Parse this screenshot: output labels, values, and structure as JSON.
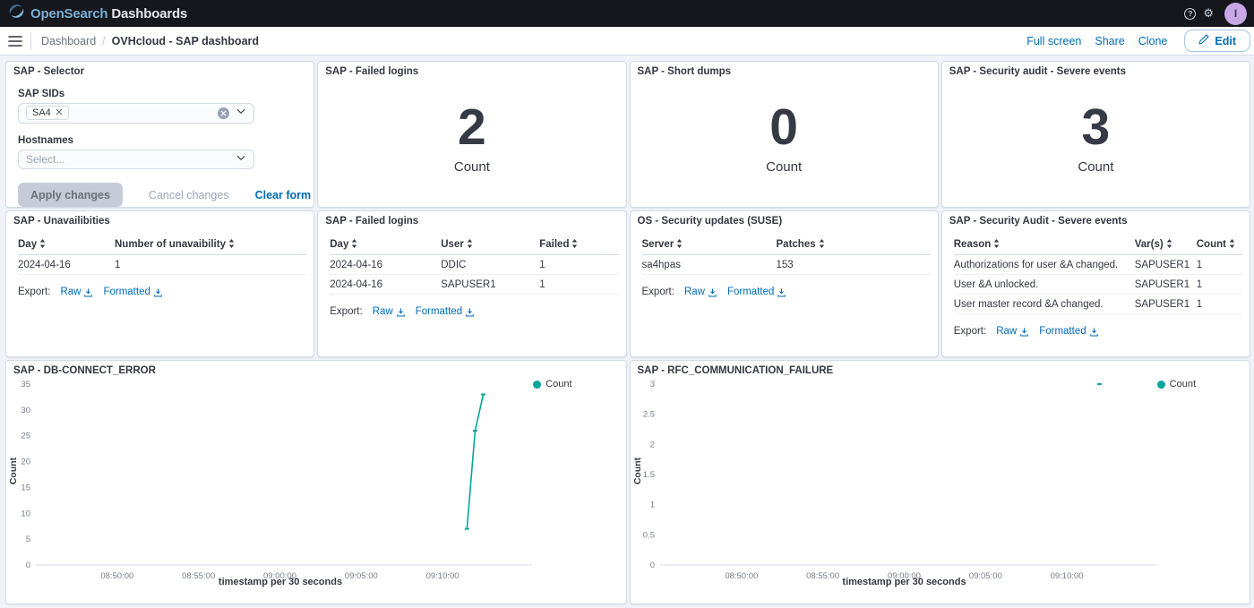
{
  "colors": {
    "accent_blue": "#006BB4",
    "teal": "#00A69B",
    "text_dark": "#343741",
    "border": "#D3DAE6",
    "header_bg": "#15171C",
    "avatar_bg": "#C9A7E6"
  },
  "header": {
    "brand": "OpenSearch",
    "product": "Dashboards",
    "icons": [
      "help-icon",
      "gear-icon"
    ],
    "avatar_letter": "I"
  },
  "nav": {
    "breadcrumb_root": "Dashboard",
    "breadcrumb_separator": "/",
    "breadcrumb_current": "OVHcloud - SAP dashboard",
    "full_screen": "Full screen",
    "share": "Share",
    "clone": "Clone",
    "edit": "Edit"
  },
  "selector": {
    "title": "SAP - Selector",
    "sids_label": "SAP SIDs",
    "sid_tag": "SA4",
    "hostnames_label": "Hostnames",
    "hostnames_placeholder": "Select...",
    "apply": "Apply changes",
    "cancel": "Cancel changes",
    "clear": "Clear form"
  },
  "metrics": [
    {
      "title": "SAP - Failed logins",
      "value": "2",
      "label": "Count"
    },
    {
      "title": "SAP - Short dumps",
      "value": "0",
      "label": "Count"
    },
    {
      "title": "SAP - Security audit - Severe events",
      "value": "3",
      "label": "Count"
    }
  ],
  "tables": [
    {
      "title": "SAP - Unavailibities",
      "columns": [
        "Day",
        "Number of unavaibility"
      ],
      "rows": [
        [
          "2024-04-16",
          "1"
        ]
      ],
      "export_label": "Export:",
      "raw": "Raw",
      "formatted": "Formatted"
    },
    {
      "title": "SAP - Failed logins",
      "columns": [
        "Day",
        "User",
        "Failed"
      ],
      "rows": [
        [
          "2024-04-16",
          "DDIC",
          "1"
        ],
        [
          "2024-04-16",
          "SAPUSER1",
          "1"
        ]
      ],
      "export_label": "Export:",
      "raw": "Raw",
      "formatted": "Formatted"
    },
    {
      "title": "OS - Security updates (SUSE)",
      "columns": [
        "Server",
        "Patches"
      ],
      "rows": [
        [
          "sa4hpas",
          "153"
        ]
      ],
      "export_label": "Export:",
      "raw": "Raw",
      "formatted": "Formatted"
    },
    {
      "title": "SAP - Security Audit - Severe events",
      "columns": [
        "Reason",
        "Var(s)",
        "Count"
      ],
      "rows": [
        [
          "Authorizations for user &A changed.",
          "SAPUSER1",
          "1"
        ],
        [
          "User &A unlocked.",
          "SAPUSER1",
          "1"
        ],
        [
          "User master record &A changed.",
          "SAPUSER1",
          "1"
        ]
      ],
      "export_label": "Export:",
      "raw": "Raw",
      "formatted": "Formatted"
    }
  ],
  "chart_data": [
    {
      "type": "line",
      "title": "SAP - DB-CONNECT_ERROR",
      "xlabel": "timestamp per 30 seconds",
      "ylabel": "Count",
      "legend": "Count",
      "color": "#00A69B",
      "x_domain": [
        "08:45:00",
        "09:15:30"
      ],
      "x_ticks": [
        "08:50:00",
        "08:55:00",
        "09:00:00",
        "09:05:00",
        "09:10:00"
      ],
      "y_ticks": [
        0,
        5,
        10,
        15,
        20,
        25,
        30,
        35
      ],
      "y_max": 35,
      "points": [
        {
          "t": "09:11:30",
          "v": 7
        },
        {
          "t": "09:12:00",
          "v": 26
        },
        {
          "t": "09:12:30",
          "v": 33
        }
      ]
    },
    {
      "type": "line",
      "title": "SAP - RFC_COMMUNICATION_FAILURE",
      "xlabel": "timestamp per 30 seconds",
      "ylabel": "Count",
      "legend": "Count",
      "color": "#00A69B",
      "x_domain": [
        "08:45:00",
        "09:15:30"
      ],
      "x_ticks": [
        "08:50:00",
        "08:55:00",
        "09:00:00",
        "09:05:00",
        "09:10:00"
      ],
      "y_ticks": [
        0,
        0.5,
        1,
        1.5,
        2,
        2.5,
        3
      ],
      "y_max": 3,
      "points": [
        {
          "t": "09:12:00",
          "v": 3
        }
      ]
    }
  ]
}
